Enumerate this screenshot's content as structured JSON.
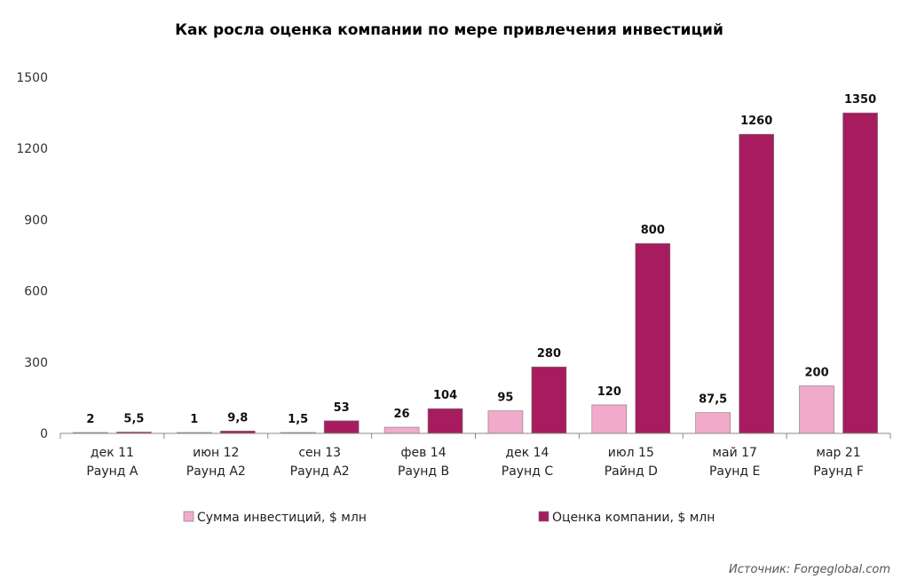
{
  "chart_data": {
    "type": "bar",
    "title": "Как росла оценка компании по мере привлечения инвестиций",
    "categories": [
      [
        "дек 11",
        "Раунд А"
      ],
      [
        "июн 12",
        "Раунд А2"
      ],
      [
        "сен 13",
        "Раунд А2"
      ],
      [
        "фев 14",
        "Раунд В"
      ],
      [
        "дек 14",
        "Раунд С"
      ],
      [
        "июл 15",
        "Райнд D"
      ],
      [
        "май 17",
        "Раунд Е"
      ],
      [
        "мар 21",
        "Раунд F"
      ]
    ],
    "series": [
      {
        "name": "Сумма инвестиций, $ млн",
        "color": "#f2aacb",
        "values": [
          2,
          1,
          1.5,
          26,
          95,
          120,
          87.5,
          200
        ],
        "labels": [
          "2",
          "1",
          "1,5",
          "26",
          "95",
          "120",
          "87,5",
          "200"
        ]
      },
      {
        "name": "Оценка компании, $ млн",
        "color": "#a61c5e",
        "values": [
          5.5,
          9.8,
          53,
          104,
          280,
          800,
          1260,
          1350
        ],
        "labels": [
          "5,5",
          "9,8",
          "53",
          "104",
          "280",
          "800",
          "1260",
          "1350"
        ]
      }
    ],
    "ylim": [
      0,
      1500
    ],
    "yticks": [
      0,
      300,
      600,
      900,
      1200,
      1500
    ],
    "grid": false,
    "legend_position": "bottom",
    "source": "Источник: Forgeglobal.com"
  }
}
